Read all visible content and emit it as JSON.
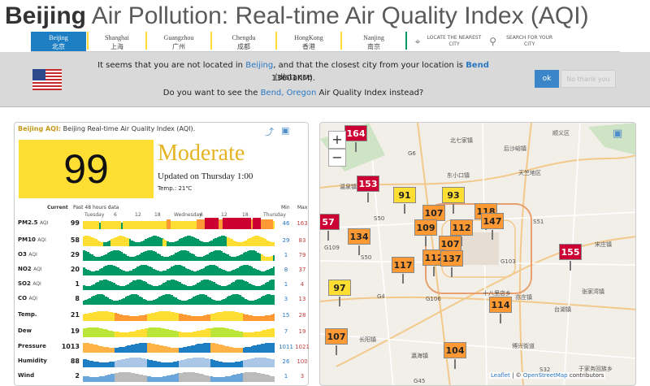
{
  "title": {
    "city": "Beijing",
    "rest": "Air Pollution: Real-time Air Quality Index (AQI)"
  },
  "cities": [
    {
      "en": "Beijing",
      "zh": "北京",
      "active": true,
      "color": "#ffde33"
    },
    {
      "en": "Shanghai",
      "zh": "上海",
      "color": "#ffde33"
    },
    {
      "en": "Guangzhou",
      "zh": "广州",
      "color": "#ffde33"
    },
    {
      "en": "Chengdu",
      "zh": "成都",
      "color": "#ffde33"
    },
    {
      "en": "HongKong",
      "zh": "香港",
      "color": "#ffde33"
    },
    {
      "en": "Nanjing",
      "zh": "南京",
      "color": "#009966"
    }
  ],
  "locate": {
    "nearest": "LOCATE THE NEAREST CITY",
    "search": "SEARCH FOR YOUR CITY"
  },
  "banner": {
    "l1a": "It seems that you are not located in",
    "l1b": "Beijing",
    "l1c": ", and that the closest city from your location is",
    "l1d": "Bend",
    "l1e": "(distance",
    "l2": "13601KM).",
    "l3a": "Do you want to see the",
    "l3b": "Bend, Oregon",
    "l3c": "Air Quality Index instead?",
    "ok": "ok",
    "nothanks": "No thank you"
  },
  "card": {
    "head_city": "Beijing AQI:",
    "head_rest": "Beijing Real-time Air Quality Index (AQI).",
    "aqi": "99",
    "level": "Moderate",
    "updated": "Updated on Thursday 1:00",
    "temp": "Temp.: 21℃",
    "cols": {
      "current": "Current",
      "past": "Past 48 hours data",
      "min": "Min",
      "max": "Max"
    },
    "ticks": [
      "Tuesday",
      "6",
      "12",
      "18",
      "Wednesday",
      "6",
      "12",
      "18",
      "Thursday"
    ],
    "rows": [
      {
        "label": "PM2.5",
        "unit": "AQI",
        "value": "99",
        "min": "46",
        "max": "163",
        "levels": [
          1,
          1,
          1,
          1,
          1,
          1,
          1,
          1,
          0,
          1,
          1,
          1,
          1,
          1,
          1,
          1,
          1,
          1,
          1,
          0,
          1,
          1,
          1,
          1,
          1,
          1,
          1,
          1,
          1,
          1,
          1,
          1,
          1,
          1,
          1,
          1,
          1,
          1,
          1,
          1,
          1,
          1,
          2,
          2,
          1,
          1,
          1,
          1,
          1,
          1,
          1,
          1,
          1,
          1,
          1,
          1,
          1,
          2,
          2,
          2,
          2,
          3,
          3,
          3,
          3,
          3,
          3,
          3,
          2,
          2,
          3,
          3,
          3,
          3,
          3,
          3,
          3,
          3,
          3,
          3,
          3,
          3,
          3,
          3,
          2,
          3,
          3,
          3,
          3,
          2,
          2,
          2,
          2,
          2,
          2,
          1
        ]
      },
      {
        "label": "PM10",
        "unit": "AQI",
        "value": "58",
        "min": "29",
        "max": "83",
        "levels": [
          1,
          1,
          1,
          1,
          1,
          1,
          1,
          1,
          1,
          1,
          0,
          0,
          0,
          0,
          1,
          1,
          1,
          1,
          1,
          1,
          1,
          1,
          1,
          0,
          0,
          0,
          0,
          0,
          0,
          0,
          0,
          0,
          0,
          0,
          0,
          0,
          0,
          0,
          0,
          0,
          1,
          1,
          0,
          0,
          0,
          0,
          0,
          0,
          0,
          0,
          0,
          0,
          0,
          0,
          0,
          0,
          0,
          0,
          0,
          0,
          0,
          0,
          0,
          0,
          0,
          0,
          0,
          0,
          0,
          0,
          0,
          0,
          1,
          1,
          1,
          1,
          1,
          1,
          1,
          1,
          1,
          1,
          1,
          1,
          1,
          1,
          1,
          1,
          1,
          1,
          1,
          1,
          1,
          1,
          1,
          1
        ]
      },
      {
        "label": "O3",
        "unit": "AQI",
        "value": "29",
        "min": "1",
        "max": "79",
        "levels": [
          0,
          0,
          0,
          0,
          0,
          0,
          0,
          0,
          0,
          0,
          0,
          0,
          0,
          0,
          0,
          0,
          0,
          0,
          0,
          0,
          0,
          0,
          0,
          0,
          0,
          0,
          0,
          0,
          0,
          0,
          0,
          0,
          0,
          0,
          0,
          0,
          0,
          0,
          0,
          0,
          0,
          0,
          0,
          0,
          0,
          0,
          0,
          0,
          0,
          0,
          0,
          0,
          0,
          0,
          0,
          0,
          0,
          0,
          0,
          0,
          0,
          0,
          0,
          0,
          0,
          0,
          0,
          0,
          0,
          0,
          0,
          0,
          0,
          0,
          0,
          0,
          0,
          0,
          0,
          0,
          0,
          0,
          0,
          0,
          0,
          0,
          0,
          0,
          0,
          1,
          1,
          1,
          1,
          1,
          1,
          0
        ]
      },
      {
        "label": "NO2",
        "unit": "AQI",
        "value": "20",
        "min": "8",
        "max": "37",
        "levels": [
          0,
          0,
          0,
          0,
          0,
          0,
          0,
          0,
          0,
          0,
          0,
          0,
          0,
          0,
          0,
          0,
          0,
          0,
          0,
          0,
          0,
          0,
          0,
          0,
          0,
          0,
          0,
          0,
          0,
          0,
          0,
          0,
          0,
          0,
          0,
          0,
          0,
          0,
          0,
          0,
          0,
          0,
          0,
          0,
          0,
          0,
          0,
          0,
          0,
          0,
          0,
          0,
          0,
          0,
          0,
          0,
          0,
          0,
          0,
          0,
          0,
          0,
          0,
          0,
          0,
          0,
          0,
          0,
          0,
          0,
          0,
          0,
          0,
          0,
          0,
          0,
          0,
          0,
          0,
          0,
          0,
          0,
          0,
          0,
          0,
          0,
          0,
          0,
          0,
          0,
          0,
          0,
          0,
          0,
          0,
          0
        ]
      },
      {
        "label": "SO2",
        "unit": "AQI",
        "value": "1",
        "min": "1",
        "max": "4",
        "levels": [
          0,
          0,
          0,
          0,
          0,
          0,
          0,
          0,
          0,
          0,
          0,
          0,
          0,
          0,
          0,
          0,
          0,
          0,
          0,
          0,
          0,
          0,
          0,
          0,
          0,
          0,
          0,
          0,
          0,
          0,
          0,
          0,
          0,
          0,
          0,
          0,
          0,
          0,
          0,
          0,
          0,
          0,
          0,
          0,
          0,
          0,
          0,
          0,
          0,
          0,
          0,
          0,
          0,
          0,
          0,
          0,
          0,
          0,
          0,
          0,
          0,
          0,
          0,
          0,
          0,
          0,
          0,
          0,
          0,
          0,
          0,
          0,
          0,
          0,
          0,
          0,
          0,
          0,
          0,
          0,
          0,
          0,
          0,
          0,
          0,
          0,
          0,
          0,
          0,
          0,
          0,
          0,
          0,
          0,
          0,
          0
        ]
      },
      {
        "label": "CO",
        "unit": "AQI",
        "value": "8",
        "min": "3",
        "max": "13",
        "levels": [
          0,
          0,
          0,
          0,
          0,
          0,
          0,
          0,
          0,
          0,
          0,
          0,
          0,
          0,
          0,
          0,
          0,
          0,
          0,
          0,
          0,
          0,
          0,
          0,
          0,
          0,
          0,
          0,
          0,
          0,
          0,
          0,
          0,
          0,
          0,
          0,
          0,
          0,
          0,
          0,
          0,
          0,
          0,
          0,
          0,
          0,
          0,
          0,
          0,
          0,
          0,
          0,
          0,
          0,
          0,
          0,
          0,
          0,
          0,
          0,
          0,
          0,
          0,
          0,
          0,
          0,
          0,
          0,
          0,
          0,
          0,
          0,
          0,
          0,
          0,
          0,
          0,
          0,
          0,
          0,
          0,
          0,
          0,
          0,
          0,
          0,
          0,
          0,
          0,
          0,
          0,
          0,
          0,
          0,
          0,
          0
        ]
      },
      {
        "label": "Temp.",
        "unit": "",
        "value": "21",
        "min": "15",
        "max": "28",
        "levels": []
      },
      {
        "label": "Dew",
        "unit": "",
        "value": "19",
        "min": "7",
        "max": "19",
        "levels": []
      },
      {
        "label": "Pressure",
        "unit": "",
        "value": "1013",
        "min": "1011",
        "max": "1021",
        "levels": []
      },
      {
        "label": "Humidity",
        "unit": "",
        "value": "88",
        "min": "26",
        "max": "100",
        "levels": []
      },
      {
        "label": "Wind",
        "unit": "",
        "value": "2",
        "min": "1",
        "max": "3",
        "levels": []
      }
    ]
  },
  "map": {
    "zoom_in": "+",
    "zoom_out": "−",
    "markers": [
      {
        "v": "164",
        "c": "r"
      },
      {
        "v": "153",
        "c": "r"
      },
      {
        "v": "91",
        "c": "y"
      },
      {
        "v": "93",
        "c": "y"
      },
      {
        "v": "57",
        "c": "r"
      },
      {
        "v": "107",
        "c": "o"
      },
      {
        "v": "109",
        "c": "o"
      },
      {
        "v": "112",
        "c": "o"
      },
      {
        "v": "118",
        "c": "o"
      },
      {
        "v": "147",
        "c": "o"
      },
      {
        "v": "134",
        "c": "o"
      },
      {
        "v": "107",
        "c": "o"
      },
      {
        "v": "112",
        "c": "o"
      },
      {
        "v": "137",
        "c": "o"
      },
      {
        "v": "117",
        "c": "o"
      },
      {
        "v": "155",
        "c": "r"
      },
      {
        "v": "97",
        "c": "y"
      },
      {
        "v": "114",
        "c": "o"
      },
      {
        "v": "107",
        "c": "o"
      },
      {
        "v": "104",
        "c": "o"
      }
    ],
    "labels": [
      "顺义区",
      "北七家镇",
      "后沙峪镇",
      "天竺地区",
      "东小口镇",
      "S50",
      "S51",
      "G6",
      "G4",
      "G106",
      "G103",
      "S50",
      "宋庄镇",
      "十八里店乡",
      "张家湾镇",
      "台湖镇",
      "亦庄镇",
      "长阳镇",
      "瀛海镇",
      "博兴街道",
      "于家务回族乡",
      "G45",
      "S32",
      "G109",
      "温泉镇"
    ],
    "attribution": {
      "leaflet": "Leaflet",
      "sep": " | © ",
      "osm": "OpenStreetMap",
      "rest": " contributors"
    }
  }
}
